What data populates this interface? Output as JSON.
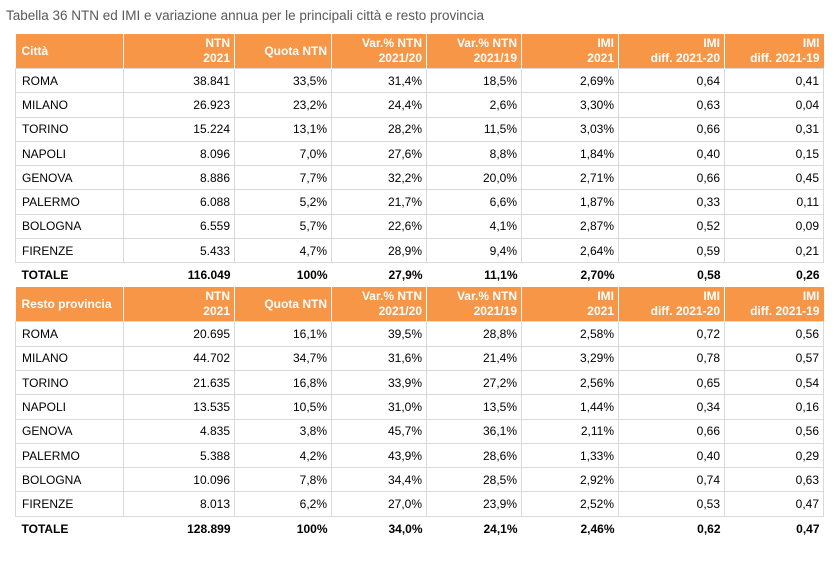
{
  "caption": "Tabella 36 NTN ed IMI e variazione annua per le principali città e resto provincia",
  "sections": [
    {
      "header": [
        "Città",
        "NTN\n2021",
        "Quota NTN",
        "Var.% NTN\n2021/20",
        "Var.% NTN\n2021/19",
        "IMI\n2021",
        "IMI\ndiff. 2021-20",
        "IMI\ndiff. 2021-19"
      ],
      "rows": [
        [
          "ROMA",
          "38.841",
          "33,5%",
          "31,4%",
          "18,5%",
          "2,69%",
          "0,64",
          "0,41"
        ],
        [
          "MILANO",
          "26.923",
          "23,2%",
          "24,4%",
          "2,6%",
          "3,30%",
          "0,63",
          "0,04"
        ],
        [
          "TORINO",
          "15.224",
          "13,1%",
          "28,2%",
          "11,5%",
          "3,03%",
          "0,66",
          "0,31"
        ],
        [
          "NAPOLI",
          "8.096",
          "7,0%",
          "27,6%",
          "8,8%",
          "1,84%",
          "0,40",
          "0,15"
        ],
        [
          "GENOVA",
          "8.886",
          "7,7%",
          "32,2%",
          "20,0%",
          "2,71%",
          "0,66",
          "0,45"
        ],
        [
          "PALERMO",
          "6.088",
          "5,2%",
          "21,7%",
          "6,6%",
          "1,87%",
          "0,33",
          "0,11"
        ],
        [
          "BOLOGNA",
          "6.559",
          "5,7%",
          "22,6%",
          "4,1%",
          "2,87%",
          "0,52",
          "0,09"
        ],
        [
          "FIRENZE",
          "5.433",
          "4,7%",
          "28,9%",
          "9,4%",
          "2,64%",
          "0,59",
          "0,21"
        ]
      ],
      "total": [
        "TOTALE",
        "116.049",
        "100%",
        "27,9%",
        "11,1%",
        "2,70%",
        "0,58",
        "0,26"
      ]
    },
    {
      "header": [
        "Resto provincia",
        "NTN\n2021",
        "Quota NTN",
        "Var.% NTN\n2021/20",
        "Var.% NTN\n2021/19",
        "IMI\n2021",
        "IMI\ndiff. 2021-20",
        "IMI\ndiff. 2021-19"
      ],
      "rows": [
        [
          "ROMA",
          "20.695",
          "16,1%",
          "39,5%",
          "28,8%",
          "2,58%",
          "0,72",
          "0,56"
        ],
        [
          "MILANO",
          "44.702",
          "34,7%",
          "31,6%",
          "21,4%",
          "3,29%",
          "0,78",
          "0,57"
        ],
        [
          "TORINO",
          "21.635",
          "16,8%",
          "33,9%",
          "27,2%",
          "2,56%",
          "0,65",
          "0,54"
        ],
        [
          "NAPOLI",
          "13.535",
          "10,5%",
          "31,0%",
          "13,5%",
          "1,44%",
          "0,34",
          "0,16"
        ],
        [
          "GENOVA",
          "4.835",
          "3,8%",
          "45,7%",
          "36,1%",
          "2,11%",
          "0,66",
          "0,56"
        ],
        [
          "PALERMO",
          "5.388",
          "4,2%",
          "43,9%",
          "28,6%",
          "1,33%",
          "0,40",
          "0,29"
        ],
        [
          "BOLOGNA",
          "10.096",
          "7,8%",
          "34,4%",
          "28,5%",
          "2,92%",
          "0,74",
          "0,63"
        ],
        [
          "FIRENZE",
          "8.013",
          "6,2%",
          "27,0%",
          "23,9%",
          "2,52%",
          "0,53",
          "0,47"
        ]
      ],
      "total": [
        "TOTALE",
        "128.899",
        "100%",
        "34,0%",
        "24,1%",
        "2,46%",
        "0,62",
        "0,47"
      ]
    }
  ],
  "colors": {
    "header_bg": "#f79646",
    "header_text": "#ffffff",
    "grid": "#d9d9d9",
    "caption": "#595959"
  }
}
